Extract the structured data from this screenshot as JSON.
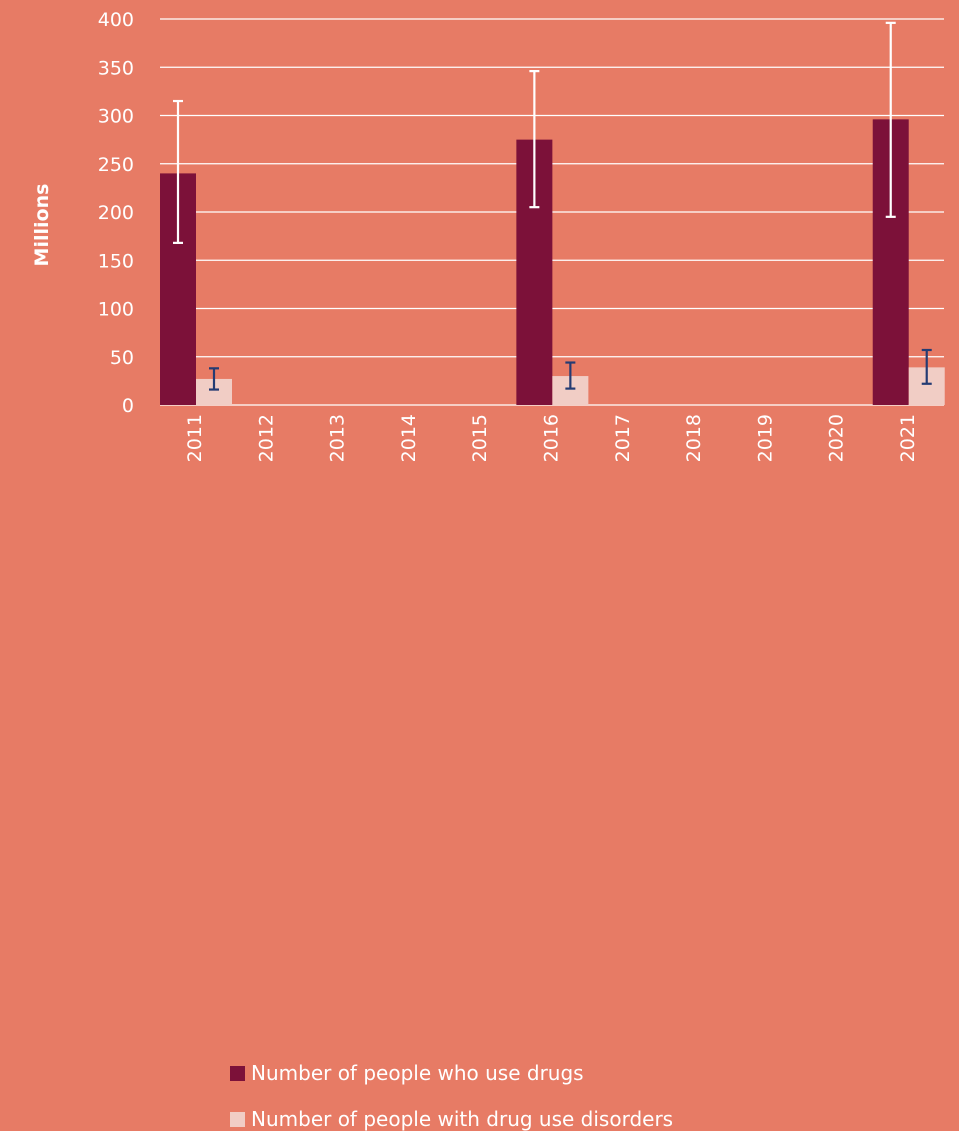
{
  "chart_data": {
    "type": "bar",
    "title": "",
    "xlabel": "",
    "ylabel": "Millions",
    "ylim": [
      0,
      400
    ],
    "yticks": [
      0,
      50,
      100,
      150,
      200,
      250,
      300,
      350,
      400
    ],
    "grid": true,
    "legend_position": "bottom",
    "categories": [
      "2011",
      "2012",
      "2013",
      "2014",
      "2015",
      "2016",
      "2017",
      "2018",
      "2019",
      "2020",
      "2021"
    ],
    "series": [
      {
        "name": "Number of people who use drugs",
        "color": "#7c1139",
        "error_color": "#ffffff",
        "values": [
          240,
          null,
          null,
          null,
          null,
          275,
          null,
          null,
          null,
          null,
          296
        ],
        "error_low": [
          168,
          null,
          null,
          null,
          null,
          205,
          null,
          null,
          null,
          null,
          195
        ],
        "error_high": [
          315,
          null,
          null,
          null,
          null,
          346,
          null,
          null,
          null,
          null,
          396
        ]
      },
      {
        "name": "Number of people with drug use disorders",
        "color": "#f1cdc5",
        "error_color": "#243b73",
        "values": [
          27,
          null,
          null,
          null,
          null,
          30,
          null,
          null,
          null,
          null,
          39
        ],
        "error_low": [
          16,
          null,
          null,
          null,
          null,
          17,
          null,
          null,
          null,
          null,
          22
        ],
        "error_high": [
          38,
          null,
          null,
          null,
          null,
          44,
          null,
          null,
          null,
          null,
          57
        ]
      }
    ]
  }
}
